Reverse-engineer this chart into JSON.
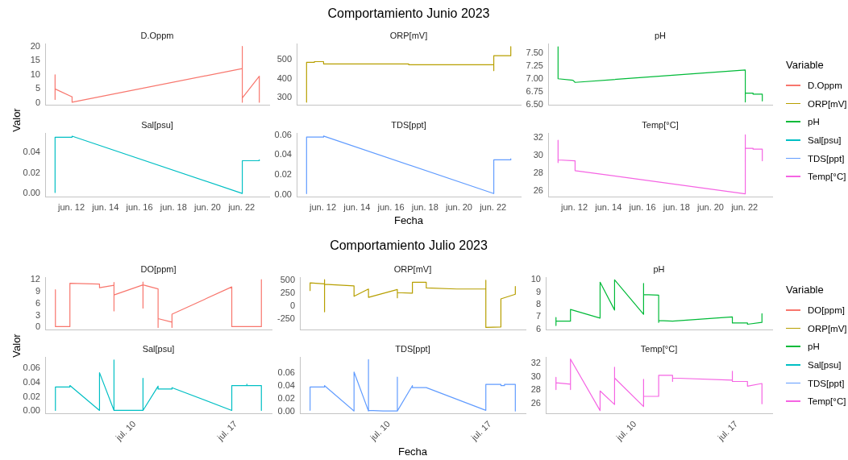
{
  "chart_data": [
    {
      "type": "line",
      "title": "D.Oppm",
      "ylabel": "Valor",
      "annotations": [
        "Comportamiento Junio 2023"
      ],
      "x": [
        "2023-06-11T01:00",
        "2023-06-11T01:00",
        "2023-06-11T01:00",
        "2023-06-12T01:00",
        "2023-06-12T01:00",
        "2023-06-22T01:00",
        "2023-06-22T01:00",
        "2023-06-22T01:00",
        "2023-06-22T01:00",
        "2023-06-23T01:00",
        "2023-06-23T01:00"
      ],
      "series": [
        {
          "name": "D.Oppm",
          "color": "#f8766d",
          "values": [
            10.0,
            1.3,
            5.0,
            2.2,
            0.3,
            12.2,
            20.0,
            0.3,
            1.8,
            9.5,
            0.3
          ]
        }
      ],
      "xlim": [
        "2023-06-10T11:00",
        "2023-06-23T15:00"
      ],
      "ylim": [
        -0.7,
        21
      ],
      "yticks": [
        0,
        5,
        10,
        15,
        20
      ],
      "tick_labels": "y",
      "legend": "right"
    },
    {
      "type": "line",
      "title": "ORP[mV]",
      "x": [
        "2023-06-11T01:00",
        "2023-06-11T01:00",
        "2023-06-11T12:00",
        "2023-06-11T12:00",
        "2023-06-12T01:00",
        "2023-06-12T01:00",
        "2023-06-17T01:00",
        "2023-06-17T01:00",
        "2023-06-22T01:00",
        "2023-06-22T01:00",
        "2023-06-22T01:00",
        "2023-06-23T01:00",
        "2023-06-23T01:00"
      ],
      "series": [
        {
          "name": "ORP[mV]",
          "color": "#b79f00",
          "values": [
            277,
            485,
            485,
            489,
            489,
            477,
            477,
            473,
            473,
            442,
            520,
            520,
            568
          ]
        }
      ],
      "xlim": [
        "2023-06-10T11:00",
        "2023-06-23T15:00"
      ],
      "ylim": [
        262,
        583
      ],
      "yticks": [
        300,
        400,
        500
      ],
      "tick_labels": "y",
      "legend": "right"
    },
    {
      "type": "line",
      "title": "pH",
      "legend_title": "Variable",
      "x": [
        "2023-06-11T01:00",
        "2023-06-11T01:00",
        "2023-06-11T22:00",
        "2023-06-12T01:00",
        "2023-06-22T01:00",
        "2023-06-22T01:00",
        "2023-06-22T01:00",
        "2023-06-22T12:00",
        "2023-06-22T12:00",
        "2023-06-23T01:00",
        "2023-06-23T01:00"
      ],
      "series": [
        {
          "name": "pH",
          "color": "#00ba38",
          "values": [
            7.62,
            7.0,
            6.97,
            6.93,
            7.17,
            6.55,
            6.72,
            6.72,
            6.7,
            6.7,
            6.57
          ]
        }
      ],
      "xlim": [
        "2023-06-10T11:00",
        "2023-06-23T15:00"
      ],
      "ylim": [
        6.49,
        7.68
      ],
      "yticks": [
        {
          "value": 6.5,
          "label": "6.50"
        },
        6.75,
        {
          "value": 7,
          "label": "7.00"
        },
        7.25,
        {
          "value": 7.5,
          "label": "7.50"
        }
      ],
      "tick_labels": "y",
      "legend": "right"
    },
    {
      "type": "line",
      "title": "Sal[psu]",
      "x": [
        "2023-06-11T01:00",
        "2023-06-11T01:00",
        "2023-06-12T01:00",
        "2023-06-12T01:00",
        "2023-06-22T01:00",
        "2023-06-22T01:00",
        "2023-06-23T01:00",
        "2023-06-23T01:00"
      ],
      "series": [
        {
          "name": "Sal[psu]",
          "color": "#00bfc4",
          "values": [
            0.001,
            0.055,
            0.055,
            0.056,
            0.0,
            0.032,
            0.032,
            0.033
          ]
        }
      ],
      "xlim": [
        "2023-06-10T11:00",
        "2023-06-23T15:00"
      ],
      "xticks": [
        {
          "value": "2023-06-12",
          "label": "jun. 12"
        },
        {
          "value": "2023-06-14",
          "label": "jun. 14"
        },
        {
          "value": "2023-06-16",
          "label": "jun. 16"
        },
        {
          "value": "2023-06-18",
          "label": "jun. 18"
        },
        {
          "value": "2023-06-20",
          "label": "jun. 20"
        },
        {
          "value": "2023-06-22",
          "label": "jun. 22"
        }
      ],
      "ylim": [
        -0.003,
        0.059
      ],
      "yticks": [
        {
          "value": 0,
          "label": "0.00"
        },
        0.02,
        0.04
      ],
      "legend": "right"
    },
    {
      "type": "line",
      "title": "TDS[ppt]",
      "xlabel": "Fecha",
      "x": [
        "2023-06-11T01:00",
        "2023-06-11T01:00",
        "2023-06-12T01:00",
        "2023-06-12T01:00",
        "2023-06-22T01:00",
        "2023-06-22T01:00",
        "2023-06-23T01:00",
        "2023-06-23T01:00"
      ],
      "series": [
        {
          "name": "TDS[ppt]",
          "color": "#619cff",
          "values": [
            0.001,
            0.058,
            0.058,
            0.059,
            0.001,
            0.035,
            0.035,
            0.036
          ]
        }
      ],
      "xlim": [
        "2023-06-10T11:00",
        "2023-06-23T15:00"
      ],
      "xticks": [
        {
          "value": "2023-06-12",
          "label": "jun. 12"
        },
        {
          "value": "2023-06-14",
          "label": "jun. 14"
        },
        {
          "value": "2023-06-16",
          "label": "jun. 16"
        },
        {
          "value": "2023-06-18",
          "label": "jun. 18"
        },
        {
          "value": "2023-06-20",
          "label": "jun. 20"
        },
        {
          "value": "2023-06-22",
          "label": "jun. 22"
        }
      ],
      "ylim": [
        -0.002,
        0.062
      ],
      "yticks": [
        {
          "value": 0,
          "label": "0.00"
        },
        0.02,
        0.04,
        0.06
      ],
      "legend": "right"
    },
    {
      "type": "line",
      "title": "Temp[°C]",
      "x": [
        "2023-06-11T01:00",
        "2023-06-11T01:00",
        "2023-06-11T01:00",
        "2023-06-12T01:00",
        "2023-06-12T01:00",
        "2023-06-22T01:00",
        "2023-06-22T01:00",
        "2023-06-22T01:00",
        "2023-06-22T12:00",
        "2023-06-22T12:00",
        "2023-06-23T01:00",
        "2023-06-23T01:00"
      ],
      "series": [
        {
          "name": "Temp[°C]",
          "color": "#f564e3",
          "values": [
            31.7,
            29.2,
            29.5,
            29.4,
            28.3,
            25.7,
            32.3,
            30.8,
            30.8,
            30.7,
            30.7,
            29.4
          ]
        }
      ],
      "xlim": [
        "2023-06-10T11:00",
        "2023-06-23T15:00"
      ],
      "xticks": [
        {
          "value": "2023-06-12",
          "label": "jun. 12"
        },
        {
          "value": "2023-06-14",
          "label": "jun. 14"
        },
        {
          "value": "2023-06-16",
          "label": "jun. 16"
        },
        {
          "value": "2023-06-18",
          "label": "jun. 18"
        },
        {
          "value": "2023-06-20",
          "label": "jun. 20"
        },
        {
          "value": "2023-06-22",
          "label": "jun. 22"
        }
      ],
      "ylim": [
        25.4,
        32.5
      ],
      "yticks": [
        26,
        28,
        30,
        32
      ],
      "legend": "right"
    },
    {
      "type": "line",
      "title": "DO[ppm]",
      "ylabel": "Valor",
      "annotations": [
        "Comportamiento Julio 2023"
      ],
      "x": [
        "2023-07-04T13:00",
        "2023-07-04T13:00",
        "2023-07-05T13:00",
        "2023-07-05T13:00",
        "2023-07-06T13:00",
        "2023-07-07T14:00",
        "2023-07-07T14:00",
        "2023-07-08T14:00",
        "2023-07-08T14:00",
        "2023-07-08T14:00",
        "2023-07-08T14:00",
        "2023-07-10T14:00",
        "2023-07-10T14:00",
        "2023-07-10T14:00",
        "2023-07-10T14:00",
        "2023-07-11T15:00",
        "2023-07-11T15:00",
        "2023-07-11T15:00",
        "2023-07-12T14:00",
        "2023-07-12T14:00",
        "2023-07-12T14:00",
        "2023-07-16T17:00",
        "2023-07-16T17:00",
        "2023-07-18T18:00",
        "2023-07-18T18:00"
      ],
      "series": [
        {
          "name": "DO[ppm]",
          "color": "#f8766d",
          "values": [
            9.4,
            0.2,
            0.2,
            11.0,
            10.9,
            10.8,
            9.9,
            10.5,
            11.2,
            4.1,
            8.1,
            10.6,
            11.3,
            4.8,
            10.6,
            9.6,
            0.0,
            2.2,
            1.3,
            0.0,
            3.3,
            10.1,
            0.2,
            0.2,
            11.9
          ]
        }
      ],
      "xlim": [
        "2023-07-03T20:00",
        "2023-07-19T11:00"
      ],
      "ylim": [
        -0.6,
        12.5
      ],
      "yticks": [
        0,
        3,
        6,
        9,
        12
      ],
      "tick_labels": "y",
      "legend": "right"
    },
    {
      "type": "line",
      "title": "ORP[mV]",
      "x": [
        "2023-07-04T13:00",
        "2023-07-04T13:00",
        "2023-07-05T13:00",
        "2023-07-05T13:00",
        "2023-07-05T13:00",
        "2023-07-05T13:00",
        "2023-07-07T14:00",
        "2023-07-07T14:00",
        "2023-07-08T14:00",
        "2023-07-08T14:00",
        "2023-07-10T14:00",
        "2023-07-10T14:00",
        "2023-07-10T14:00",
        "2023-07-11T15:00",
        "2023-07-11T15:00",
        "2023-07-12T14:00",
        "2023-07-12T14:00",
        "2023-07-14T17:00",
        "2023-07-16T17:00",
        "2023-07-16T17:00",
        "2023-07-16T17:00",
        "2023-07-17T18:00",
        "2023-07-17T18:00",
        "2023-07-18T18:00",
        "2023-07-18T18:00"
      ],
      "series": [
        {
          "name": "ORP[mV]",
          "color": "#b79f00",
          "values": [
            300,
            450,
            430,
            510,
            -110,
            420,
            390,
            190,
            330,
            170,
            320,
            160,
            260,
            250,
            460,
            460,
            350,
            330,
            330,
            500,
            -410,
            -400,
            140,
            230,
            380
          ]
        }
      ],
      "xlim": [
        "2023-07-03T20:00",
        "2023-07-19T11:00"
      ],
      "ylim": [
        -456,
        556
      ],
      "yticks": [
        -250,
        0,
        250,
        500
      ],
      "tick_labels": "y",
      "legend": "right"
    },
    {
      "type": "line",
      "title": "pH",
      "legend_title": "Variable",
      "x": [
        "2023-07-04T13:00",
        "2023-07-04T13:00",
        "2023-07-04T13:00",
        "2023-07-05T13:00",
        "2023-07-05T13:00",
        "2023-07-07T14:00",
        "2023-07-07T14:00",
        "2023-07-08T14:00",
        "2023-07-08T14:00",
        "2023-07-10T14:00",
        "2023-07-10T14:00",
        "2023-07-10T14:00",
        "2023-07-11T15:00",
        "2023-07-11T15:00",
        "2023-07-11T15:00",
        "2023-07-12T14:00",
        "2023-07-16T17:00",
        "2023-07-16T17:00",
        "2023-07-17T18:00",
        "2023-07-17T18:00",
        "2023-07-18T18:00",
        "2023-07-18T18:00"
      ],
      "series": [
        {
          "name": "pH",
          "color": "#00ba38",
          "values": [
            6.3,
            6.95,
            6.65,
            6.65,
            7.6,
            6.9,
            9.8,
            7.55,
            10.0,
            7.2,
            9.7,
            8.8,
            8.75,
            6.55,
            6.7,
            6.65,
            7.0,
            6.5,
            6.5,
            6.4,
            6.55,
            7.25
          ]
        }
      ],
      "xlim": [
        "2023-07-03T20:00",
        "2023-07-19T11:00"
      ],
      "ylim": [
        5.95,
        10.2
      ],
      "yticks": [
        6,
        7,
        8,
        9,
        10
      ],
      "tick_labels": "y",
      "legend": "right"
    },
    {
      "type": "line",
      "title": "Sal[psu]",
      "x": [
        "2023-07-04T13:00",
        "2023-07-04T13:00",
        "2023-07-05T13:00",
        "2023-07-05T13:00",
        "2023-07-07T14:00",
        "2023-07-07T14:00",
        "2023-07-08T14:00",
        "2023-07-08T14:00",
        "2023-07-08T14:00",
        "2023-07-10T14:00",
        "2023-07-10T14:00",
        "2023-07-10T14:00",
        "2023-07-11T15:00",
        "2023-07-11T15:00",
        "2023-07-12T14:00",
        "2023-07-12T14:00",
        "2023-07-16T17:00",
        "2023-07-16T17:00",
        "2023-07-17T18:00",
        "2023-07-17T18:00",
        "2023-07-17T18:00",
        "2023-07-18T18:00",
        "2023-07-18T18:00"
      ],
      "series": [
        {
          "name": "Sal[psu]",
          "color": "#00bfc4",
          "values": [
            0.001,
            0.034,
            0.034,
            0.036,
            0.001,
            0.054,
            0.001,
            0.072,
            0.001,
            0.001,
            0.046,
            0.001,
            0.035,
            0.031,
            0.031,
            0.033,
            0.001,
            0.036,
            0.036,
            0.038,
            0.036,
            0.036,
            0.001
          ]
        }
      ],
      "xlim": [
        "2023-07-03T20:00",
        "2023-07-19T11:00"
      ],
      "xticks": [
        {
          "value": "2023-07-10",
          "label": "jul. 10"
        },
        {
          "value": "2023-07-17",
          "label": "jul. 17"
        }
      ],
      "ylim": [
        -0.003,
        0.076
      ],
      "yticks": [
        {
          "value": 0,
          "label": "0.00"
        },
        0.02,
        0.04,
        0.06
      ],
      "legend": "right"
    },
    {
      "type": "line",
      "title": "TDS[ppt]",
      "xlabel": "Fecha",
      "x": [
        "2023-07-04T13:00",
        "2023-07-04T13:00",
        "2023-07-05T13:00",
        "2023-07-05T13:00",
        "2023-07-07T14:00",
        "2023-07-07T14:00",
        "2023-07-08T14:00",
        "2023-07-08T14:00",
        "2023-07-08T14:00",
        "2023-07-09T14:00",
        "2023-07-10T14:00",
        "2023-07-10T14:00",
        "2023-07-10T14:00",
        "2023-07-11T15:00",
        "2023-07-11T15:00",
        "2023-07-12T14:00",
        "2023-07-16T17:00",
        "2023-07-16T17:00",
        "2023-07-17T18:00",
        "2023-07-17T18:00",
        "2023-07-18T00:00",
        "2023-07-18T00:00",
        "2023-07-18T18:00",
        "2023-07-18T18:00"
      ],
      "series": [
        {
          "name": "TDS[ppt]",
          "color": "#619cff",
          "values": [
            0.002,
            0.038,
            0.038,
            0.04,
            0.001,
            0.061,
            0.001,
            0.08,
            0.002,
            0.001,
            0.001,
            0.053,
            0.001,
            0.04,
            0.037,
            0.037,
            0.002,
            0.042,
            0.042,
            0.04,
            0.04,
            0.042,
            0.042,
            0.001
          ]
        }
      ],
      "xlim": [
        "2023-07-03T20:00",
        "2023-07-19T11:00"
      ],
      "xticks": [
        {
          "value": "2023-07-10",
          "label": "jul. 10"
        },
        {
          "value": "2023-07-17",
          "label": "jul. 17"
        }
      ],
      "ylim": [
        -0.0025,
        0.084
      ],
      "yticks": [
        {
          "value": 0,
          "label": "0.00"
        },
        0.02,
        0.04,
        0.06
      ],
      "legend": "right"
    },
    {
      "type": "line",
      "title": "Temp[°C]",
      "x": [
        "2023-07-04T13:00",
        "2023-07-04T13:00",
        "2023-07-04T13:00",
        "2023-07-05T13:00",
        "2023-07-05T13:00",
        "2023-07-05T13:00",
        "2023-07-07T14:00",
        "2023-07-07T14:00",
        "2023-07-08T14:00",
        "2023-07-08T14:00",
        "2023-07-08T14:00",
        "2023-07-10T14:00",
        "2023-07-10T14:00",
        "2023-07-10T14:00",
        "2023-07-11T15:00",
        "2023-07-11T15:00",
        "2023-07-12T14:00",
        "2023-07-12T14:00",
        "2023-07-12T14:00",
        "2023-07-16T17:00",
        "2023-07-16T17:00",
        "2023-07-16T17:00",
        "2023-07-17T18:00",
        "2023-07-17T18:00",
        "2023-07-18T18:00",
        "2023-07-18T18:00"
      ],
      "series": [
        {
          "name": "Temp[°C]",
          "color": "#f564e3",
          "values": [
            28.1,
            29.9,
            29.1,
            28.9,
            28.1,
            32.6,
            25.0,
            27.9,
            25.9,
            31.4,
            29.8,
            25.6,
            29.6,
            27.1,
            27.1,
            30.2,
            30.2,
            29.3,
            29.8,
            29.5,
            30.8,
            29.3,
            29.3,
            28.6,
            29.0,
            26.0
          ]
        }
      ],
      "xlim": [
        "2023-07-03T20:00",
        "2023-07-19T11:00"
      ],
      "xticks": [
        {
          "value": "2023-07-10",
          "label": "jul. 10"
        },
        {
          "value": "2023-07-17",
          "label": "jul. 17"
        }
      ],
      "ylim": [
        24.6,
        32.9
      ],
      "yticks": [
        26,
        28,
        30,
        32
      ],
      "legend": "right"
    }
  ]
}
